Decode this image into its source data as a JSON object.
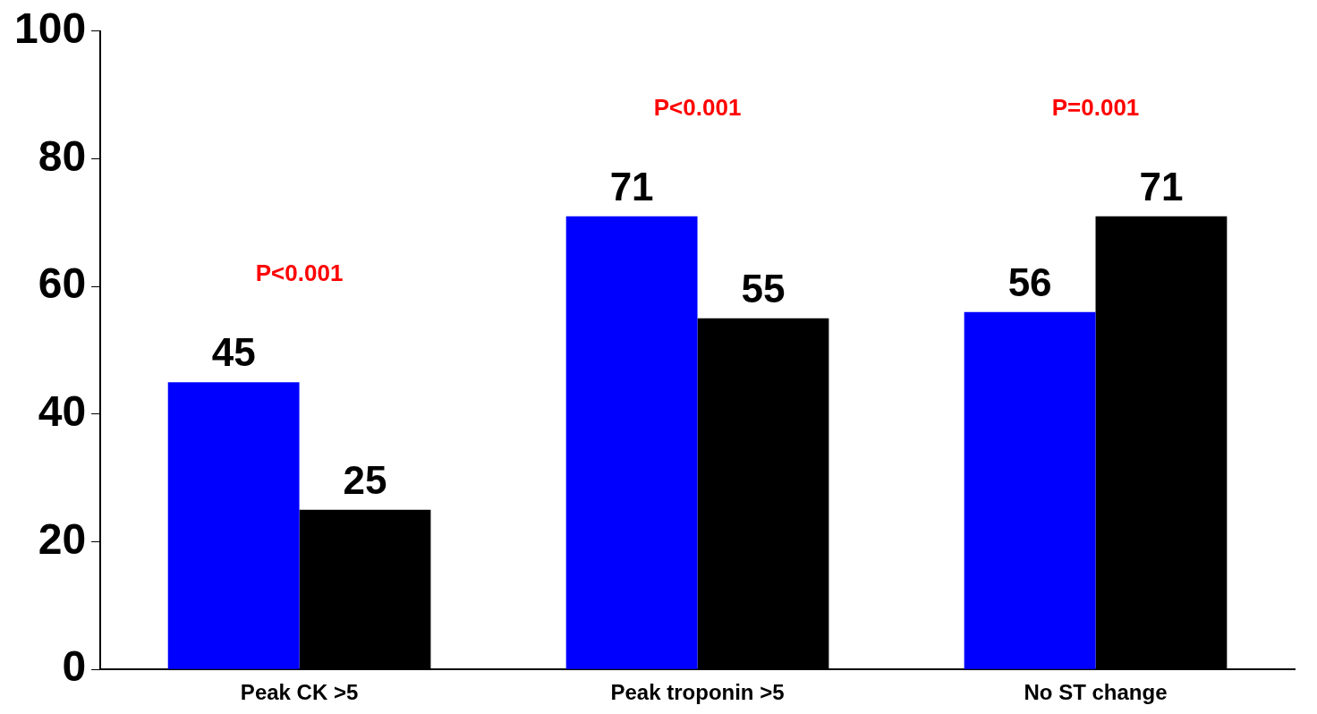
{
  "chart_data": {
    "type": "bar",
    "categories": [
      "Peak CK >5",
      "Peak troponin >5",
      "No ST change"
    ],
    "series": [
      {
        "color": "#0000ff",
        "values": [
          45,
          71,
          56
        ]
      },
      {
        "color": "#000000",
        "values": [
          25,
          55,
          71
        ]
      }
    ],
    "ylim": [
      0,
      100
    ],
    "yticks": [
      0,
      20,
      40,
      60,
      80,
      100
    ],
    "grid": false,
    "legend": false,
    "data_labels": true,
    "annotations": [
      "P<0.001",
      "P<0.001",
      "P=0.001"
    ]
  }
}
